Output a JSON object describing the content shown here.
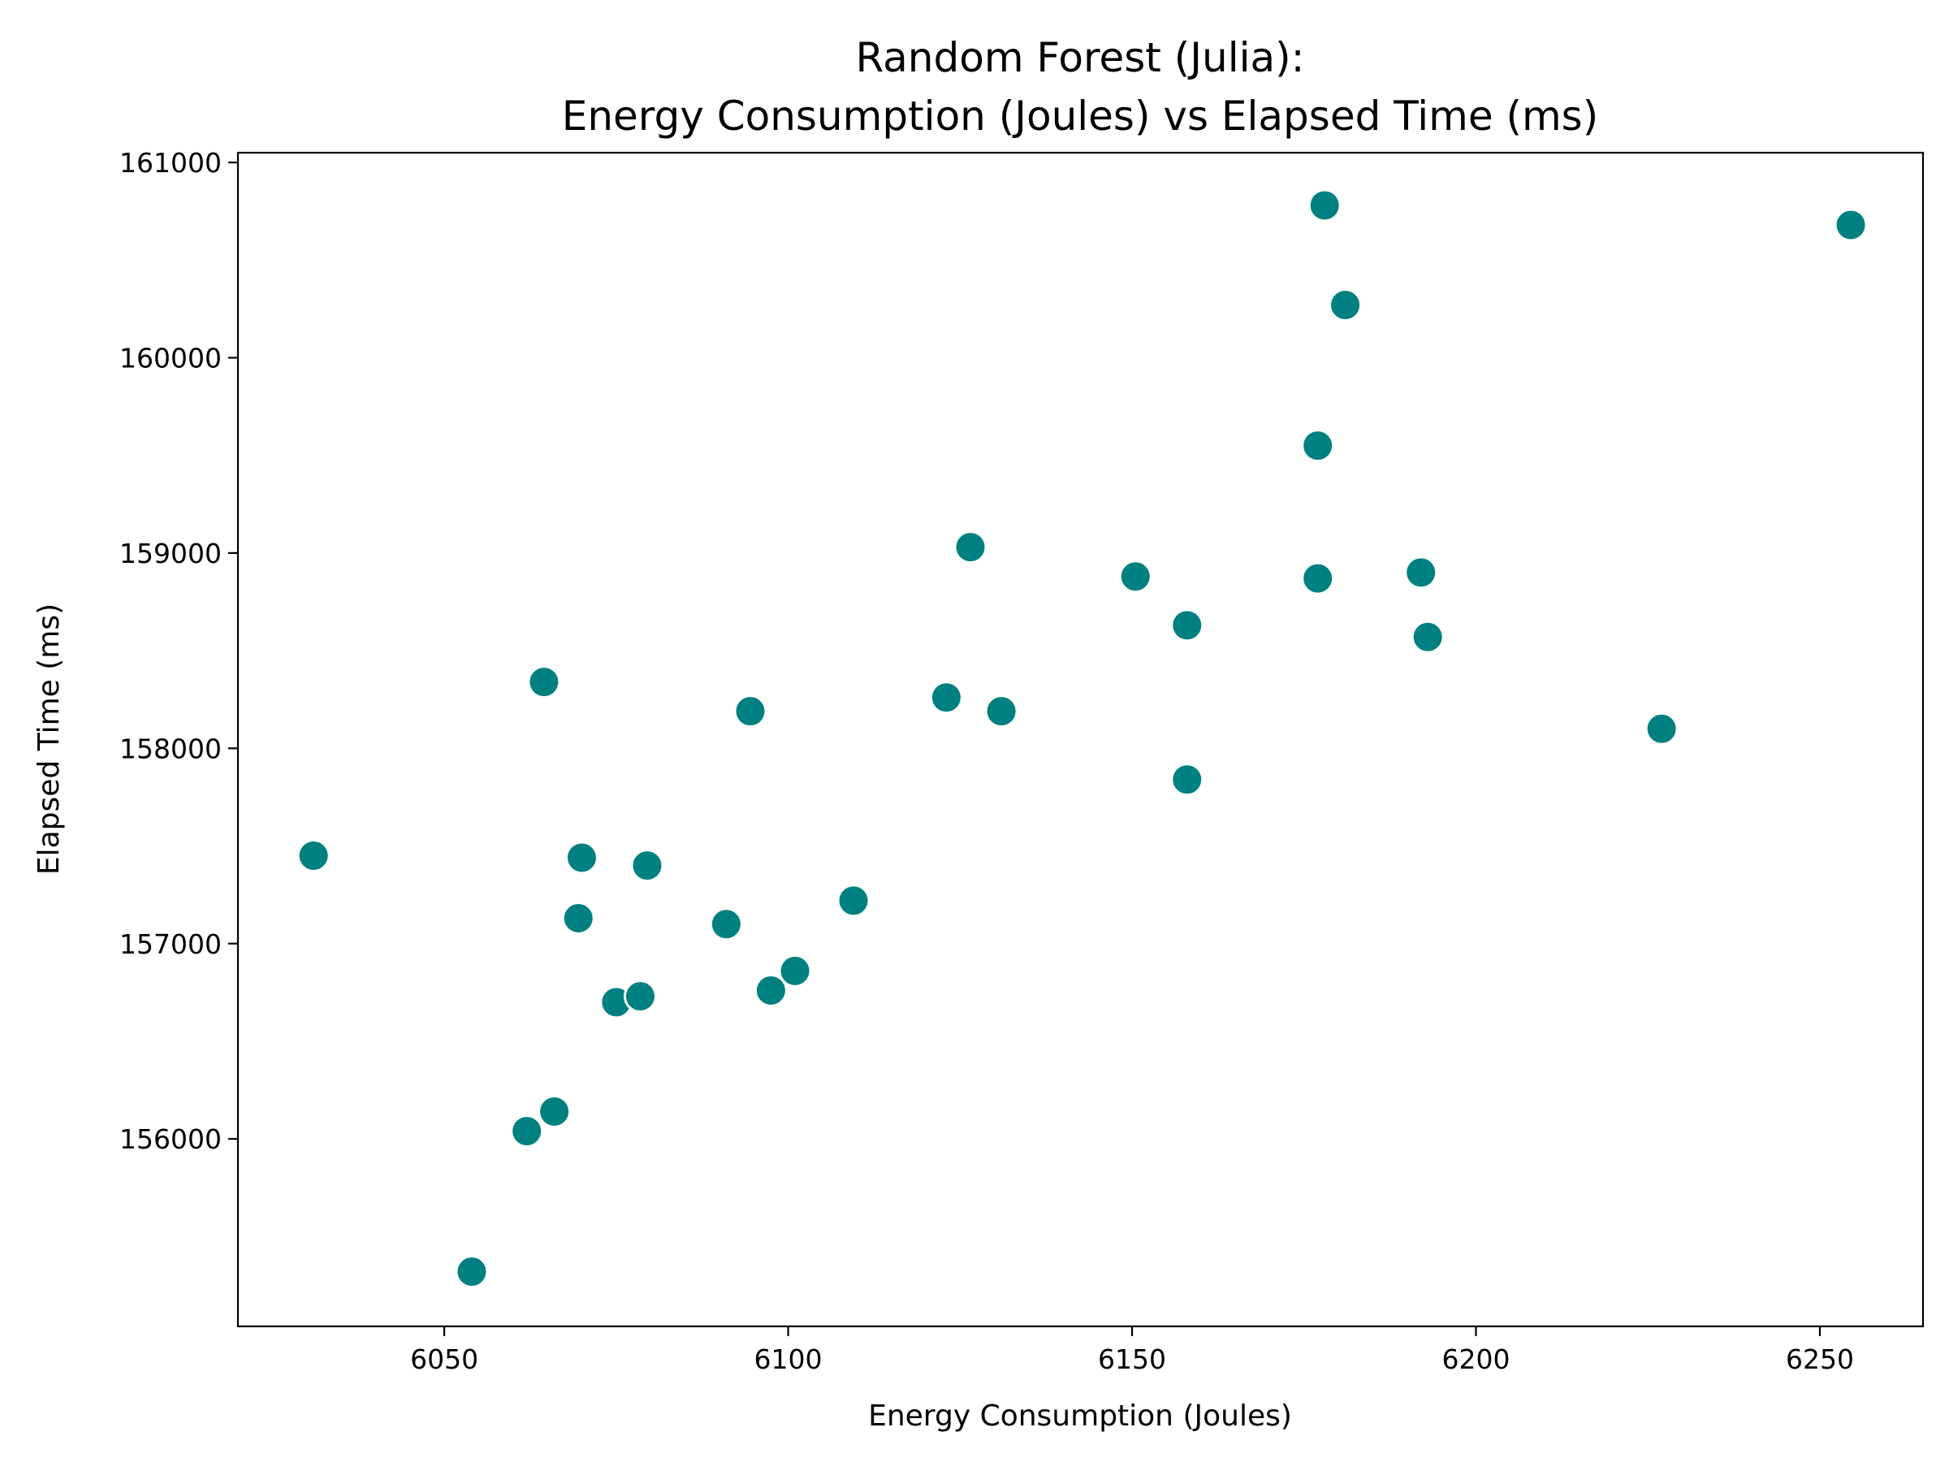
{
  "chart_data": {
    "type": "scatter",
    "title_lines": [
      "Random Forest (Julia):",
      "Energy Consumption (Joules) vs Elapsed Time (ms)"
    ],
    "xlabel": "Energy Consumption (Joules)",
    "ylabel": "Elapsed Time (ms)",
    "xlim": [
      6020,
      6265
    ],
    "ylim": [
      155040,
      161050
    ],
    "xticks": [
      6050,
      6100,
      6150,
      6200,
      6250
    ],
    "yticks": [
      156000,
      157000,
      158000,
      159000,
      160000,
      161000
    ],
    "grid": false,
    "marker_color": "#008080",
    "marker_edge_color": "#ffffff",
    "points": [
      {
        "x": 6031.0,
        "y": 157450
      },
      {
        "x": 6054.0,
        "y": 155320
      },
      {
        "x": 6062.0,
        "y": 156040
      },
      {
        "x": 6064.5,
        "y": 158340
      },
      {
        "x": 6066.0,
        "y": 156140
      },
      {
        "x": 6069.5,
        "y": 157130
      },
      {
        "x": 6070.0,
        "y": 157440
      },
      {
        "x": 6075.0,
        "y": 156700
      },
      {
        "x": 6078.5,
        "y": 156730
      },
      {
        "x": 6079.5,
        "y": 157400
      },
      {
        "x": 6091.0,
        "y": 157100
      },
      {
        "x": 6094.5,
        "y": 158190
      },
      {
        "x": 6097.5,
        "y": 156760
      },
      {
        "x": 6101.0,
        "y": 156860
      },
      {
        "x": 6109.5,
        "y": 157220
      },
      {
        "x": 6123.0,
        "y": 158260
      },
      {
        "x": 6126.5,
        "y": 159030
      },
      {
        "x": 6131.0,
        "y": 158190
      },
      {
        "x": 6150.5,
        "y": 158880
      },
      {
        "x": 6158.0,
        "y": 158630
      },
      {
        "x": 6158.0,
        "y": 157840
      },
      {
        "x": 6177.0,
        "y": 159550
      },
      {
        "x": 6177.0,
        "y": 158870
      },
      {
        "x": 6178.0,
        "y": 160780
      },
      {
        "x": 6181.0,
        "y": 160270
      },
      {
        "x": 6192.0,
        "y": 158900
      },
      {
        "x": 6193.0,
        "y": 158570
      },
      {
        "x": 6227.0,
        "y": 158100
      },
      {
        "x": 6254.5,
        "y": 160680
      }
    ]
  }
}
